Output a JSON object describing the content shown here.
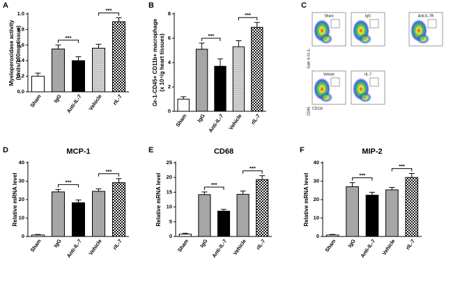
{
  "chart_data": [
    {
      "type": "bar",
      "panel": "A",
      "ylabel": [
        "Myeloperoxidase activity",
        "(Units/100mg tissue)"
      ],
      "categories": [
        "Sham",
        "IgG",
        "Anti-IL-7",
        "Vehicle",
        "rIL-7"
      ],
      "values": [
        0.2,
        0.55,
        0.4,
        0.56,
        0.9
      ],
      "errors": [
        0.04,
        0.05,
        0.05,
        0.05,
        0.05
      ],
      "colors": [
        "#ffffff",
        "#a6a6a6",
        "#000000",
        "#cfcfcf",
        "#ffffff"
      ],
      "patterns": [
        "none",
        "none",
        "none",
        "lines",
        "checker"
      ],
      "ylim": [
        0,
        1.0
      ],
      "yticks": [
        {
          "value": 0,
          "label": "0.0"
        },
        0.2,
        0.4,
        0.6,
        0.8,
        {
          "value": 1.0,
          "label": "1.0"
        }
      ],
      "annotations": [
        {
          "text": "***",
          "between": [
            "IgG",
            "Anti-IL-7"
          ]
        },
        {
          "text": "***",
          "between": [
            "Vehicle",
            "rIL-7"
          ]
        }
      ]
    },
    {
      "type": "bar",
      "panel": "B",
      "ylabel": [
        "Gr-1-CD45+ CD11b+ macrophage",
        "(x 10⁴/g heart tissues)"
      ],
      "categories": [
        "Sham",
        "IgG",
        "Anti-IL-7",
        "Vehicle",
        "rIL-7"
      ],
      "values": [
        1.0,
        5.1,
        3.7,
        5.3,
        6.9
      ],
      "errors": [
        0.2,
        0.5,
        0.6,
        0.5,
        0.4
      ],
      "colors": [
        "#ffffff",
        "#a6a6a6",
        "#000000",
        "#cfcfcf",
        "#ffffff"
      ],
      "patterns": [
        "none",
        "none",
        "none",
        "lines",
        "checker"
      ],
      "ylim": [
        0,
        8
      ],
      "yticks": [
        0,
        2,
        4,
        6,
        8
      ],
      "annotations": [
        {
          "text": "***",
          "between": [
            "IgG",
            "Anti-IL-7"
          ]
        },
        {
          "text": "***",
          "between": [
            "Vehicle",
            "rIL-7"
          ]
        }
      ]
    },
    {
      "type": "bar",
      "panel": "D",
      "title": "MCP-1",
      "ylabel": [
        "Relative mRNA level"
      ],
      "categories": [
        "Sham",
        "IgG",
        "Anti-IL-7",
        "Vehicle",
        "rIL-7"
      ],
      "values": [
        0.8,
        24.2,
        18.3,
        24.5,
        29.2
      ],
      "errors": [
        0.3,
        1.3,
        1.5,
        1.3,
        2.2
      ],
      "colors": [
        "#ffffff",
        "#a6a6a6",
        "#000000",
        "#a6a6a6",
        "#ffffff"
      ],
      "patterns": [
        "none",
        "none",
        "none",
        "none",
        "checker"
      ],
      "ylim": [
        0,
        40
      ],
      "yticks": [
        0,
        10,
        20,
        30,
        40
      ],
      "annotations": [
        {
          "text": "***",
          "between": [
            "IgG",
            "Anti-IL-7"
          ]
        },
        {
          "text": "***",
          "between": [
            "Vehicle",
            "rIL-7"
          ]
        }
      ]
    },
    {
      "type": "bar",
      "panel": "E",
      "title": "CD68",
      "ylabel": [
        "Relative mRNA level"
      ],
      "categories": [
        "Sham",
        "IgG",
        "Anti-IL-7",
        "Vehicle",
        "rIL-7"
      ],
      "values": [
        0.8,
        14.2,
        8.6,
        14.3,
        19.3
      ],
      "errors": [
        0.3,
        0.9,
        0.6,
        1.1,
        1.3
      ],
      "colors": [
        "#ffffff",
        "#a6a6a6",
        "#000000",
        "#a6a6a6",
        "#ffffff"
      ],
      "patterns": [
        "none",
        "none",
        "none",
        "none",
        "checker"
      ],
      "ylim": [
        0,
        25
      ],
      "yticks": [
        0,
        5,
        10,
        15,
        20,
        25
      ],
      "annotations": [
        {
          "text": "***",
          "between": [
            "IgG",
            "Anti-IL-7"
          ]
        },
        {
          "text": "***",
          "between": [
            "Vehicle",
            "rIL-7"
          ]
        }
      ]
    },
    {
      "type": "bar",
      "panel": "F",
      "title": "MIP-2",
      "ylabel": [
        "Relative mRNA level"
      ],
      "categories": [
        "Sham",
        "IgG",
        "Anti-IL-7",
        "Vehicle",
        "rIL-7"
      ],
      "values": [
        0.8,
        27.0,
        22.4,
        25.3,
        32.0
      ],
      "errors": [
        0.3,
        2.2,
        1.6,
        1.3,
        2.2
      ],
      "colors": [
        "#ffffff",
        "#a6a6a6",
        "#000000",
        "#a6a6a6",
        "#ffffff"
      ],
      "patterns": [
        "none",
        "none",
        "none",
        "none",
        "checker"
      ],
      "ylim": [
        0,
        40
      ],
      "yticks": [
        0,
        10,
        20,
        30,
        40
      ],
      "annotations": [
        {
          "text": "***",
          "between": [
            "IgG",
            "Anti-IL-7"
          ]
        },
        {
          "text": "***",
          "between": [
            "Vehicle",
            "rIL-7"
          ]
        }
      ]
    }
  ],
  "flow_panel": {
    "label": "C",
    "plots": [
      "Sham",
      "IgG",
      "Anti-IL-7R",
      "Vehicle",
      "rIL-7"
    ],
    "gate_label": "Gate in Gr-1-",
    "y_label": "CD45",
    "x_label": "CD11b"
  }
}
